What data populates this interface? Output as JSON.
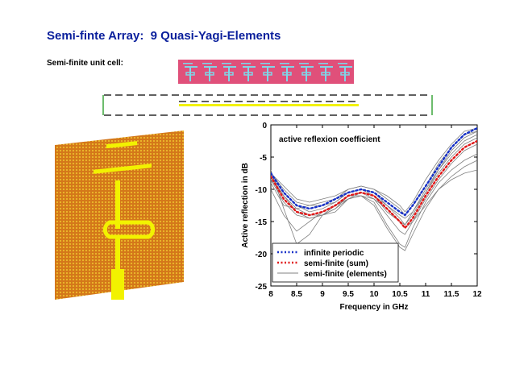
{
  "slide": {
    "title": "Semi-finte Array:  9 Quasi-Yagi-Elements",
    "unit_cell_label": "Semi-finite unit cell:"
  },
  "colors": {
    "title": "#0a1f9c",
    "unit_cell_bg": "#e0507a",
    "element_cyan": "#7fd6e8",
    "substrate": "#d4781a",
    "metal": "#f2f200",
    "infinite_periodic": "#1530c8",
    "semi_finite_sum": "#e01818",
    "semi_finite_elements": "#808080"
  },
  "chart_data": {
    "type": "line",
    "annotation": "active reflexion coefficient",
    "xlabel": "Frequency in GHz",
    "ylabel": "Active reflection in dB",
    "xlim": [
      8,
      12
    ],
    "ylim": [
      -25,
      0
    ],
    "xticks": [
      8,
      8.5,
      9,
      9.5,
      10,
      10.5,
      11,
      11.5,
      12
    ],
    "xtick_labels": [
      "8",
      "8.5",
      "9",
      "9.5",
      "10",
      "10.5",
      "11",
      "11.5",
      "12"
    ],
    "yticks": [
      0,
      -5,
      -10,
      -15,
      -20,
      -25
    ],
    "ytick_labels": [
      "0",
      "-5",
      "-10",
      "-15",
      "-20",
      "-25"
    ],
    "grid": false,
    "legend_position": "bottom-left",
    "x": [
      8.0,
      8.25,
      8.5,
      8.75,
      9.0,
      9.25,
      9.5,
      9.75,
      10.0,
      10.25,
      10.5,
      10.6,
      10.75,
      11.0,
      11.25,
      11.5,
      11.75,
      12.0
    ],
    "series": [
      {
        "name": "infinite periodic",
        "style": "dotted",
        "color": "#1530c8",
        "values": [
          -7.5,
          -10.5,
          -12.5,
          -13,
          -12.5,
          -11.5,
          -10.5,
          -10,
          -10.5,
          -12,
          -13.5,
          -14,
          -12.5,
          -9.5,
          -6.5,
          -3.5,
          -1.5,
          -0.5
        ]
      },
      {
        "name": "semi-finite (sum)",
        "style": "dotted",
        "color": "#e01818",
        "values": [
          -8,
          -11.5,
          -13.5,
          -14,
          -13.5,
          -12.5,
          -11,
          -10.5,
          -11,
          -13,
          -15,
          -16,
          -14.5,
          -11,
          -8,
          -5.5,
          -3.5,
          -2.5
        ]
      },
      {
        "name": "semi-finite (elements)",
        "style": "solid",
        "color": "#808080",
        "group": [
          [
            -7.5,
            -9.5,
            -11.5,
            -12,
            -11.5,
            -11,
            -10,
            -9.5,
            -10,
            -11,
            -12.5,
            -13.5,
            -12,
            -8.5,
            -5.5,
            -3,
            -1,
            -0.5
          ],
          [
            -8,
            -10.5,
            -12.5,
            -13.5,
            -13,
            -12,
            -10.5,
            -10,
            -10.5,
            -12.5,
            -14.5,
            -15.5,
            -13.5,
            -10,
            -7,
            -4,
            -2,
            -1
          ],
          [
            -8.5,
            -12,
            -14,
            -14.5,
            -14,
            -13,
            -11,
            -10.5,
            -11.5,
            -14,
            -16.5,
            -17,
            -15,
            -11.5,
            -8.5,
            -6,
            -4,
            -3
          ],
          [
            -7,
            -13,
            -18.5,
            -17,
            -14,
            -12.5,
            -11,
            -11,
            -12,
            -15.5,
            -18.5,
            -19,
            -16,
            -12,
            -9,
            -7,
            -5.5,
            -4.5
          ],
          [
            -9,
            -12.5,
            -13,
            -12.5,
            -12.5,
            -12,
            -10.5,
            -10,
            -11,
            -13.5,
            -15,
            -15.5,
            -14,
            -10.5,
            -7,
            -4.5,
            -2.5,
            -1.5
          ],
          [
            -10,
            -14,
            -16.5,
            -15,
            -13.5,
            -12.5,
            -11.5,
            -11,
            -11.5,
            -13,
            -15,
            -16,
            -15,
            -12.5,
            -10,
            -8,
            -6.5,
            -5.5
          ],
          [
            -8,
            -11,
            -13,
            -14,
            -14,
            -13,
            -11.5,
            -11,
            -12.5,
            -16,
            -19,
            -19.5,
            -17,
            -13,
            -10,
            -8.5,
            -7.5,
            -7
          ],
          [
            -7.5,
            -10,
            -12,
            -12.5,
            -12,
            -11.5,
            -10,
            -9.5,
            -10,
            -11.5,
            -13,
            -14,
            -12.5,
            -9.5,
            -6,
            -3.5,
            -1.5,
            -1
          ],
          [
            -8.5,
            -11,
            -13.5,
            -14.5,
            -14,
            -13.5,
            -11.5,
            -10.5,
            -11,
            -12.5,
            -14,
            -14.5,
            -13.5,
            -10.5,
            -7.5,
            -5,
            -3,
            -2
          ]
        ]
      }
    ]
  }
}
